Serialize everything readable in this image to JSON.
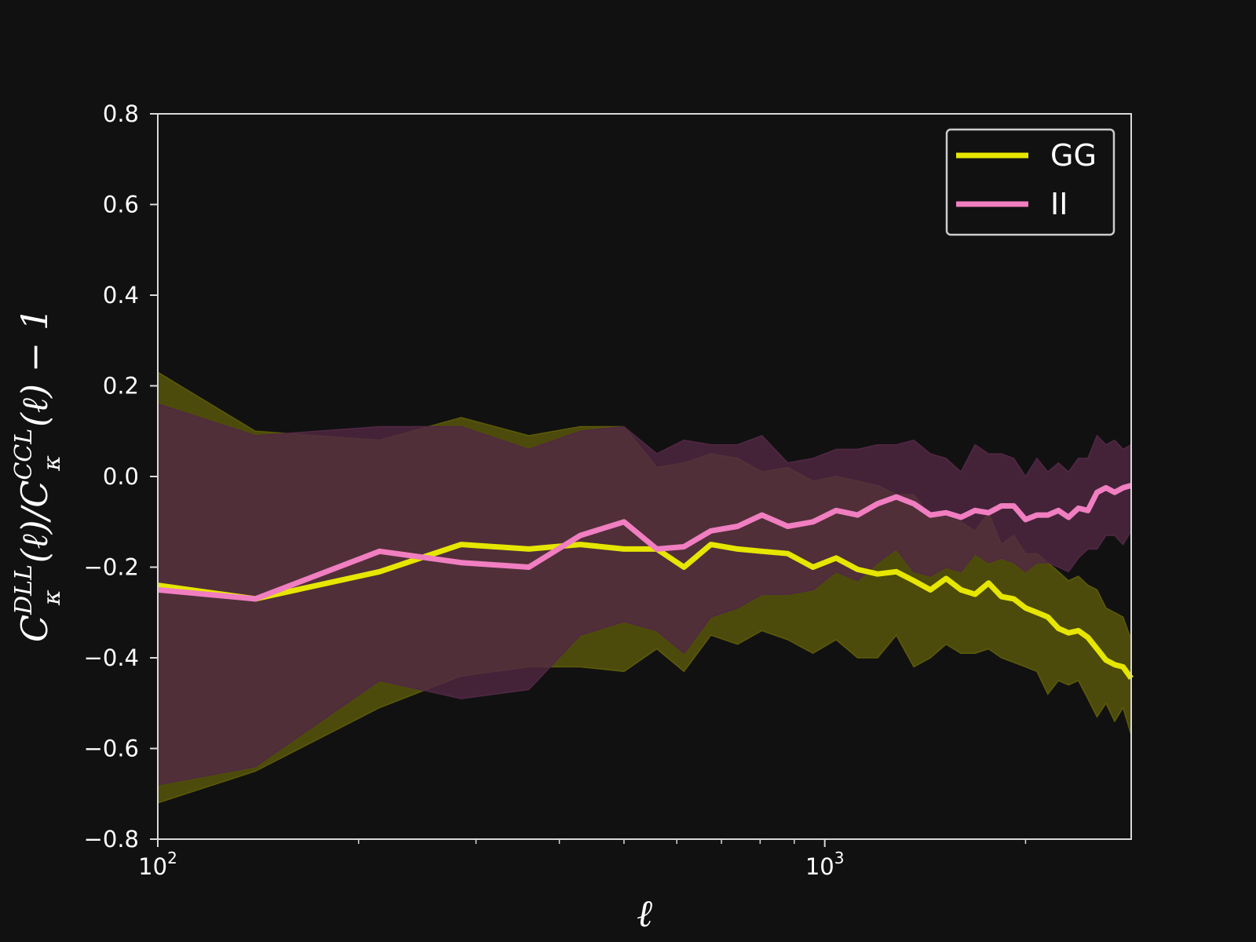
{
  "chart_data": {
    "type": "line",
    "xlabel": "ℓ",
    "ylabel": {
      "prefix": "C",
      "sup1": "DLL",
      "sub1": "κ",
      "mid": "(ℓ)/C",
      "sup2": "CCL",
      "sub2": "κ",
      "suffix": "(ℓ) − 1"
    },
    "x_scale": "log",
    "xlim": [
      100,
      2880
    ],
    "ylim": [
      -0.8,
      0.8
    ],
    "yticks": [
      -0.8,
      -0.6,
      -0.4,
      -0.2,
      0.0,
      0.2,
      0.4,
      0.6,
      0.8
    ],
    "ytick_labels": [
      "−0.8",
      "−0.6",
      "−0.4",
      "−0.2",
      "0.0",
      "0.2",
      "0.4",
      "0.6",
      "0.8"
    ],
    "xticks": [
      100,
      1000
    ],
    "xtick_labels": [
      {
        "base": "10",
        "exp": "2"
      },
      {
        "base": "10",
        "exp": "3"
      }
    ],
    "minor_xticks": [
      200,
      300,
      400,
      500,
      600,
      700,
      800,
      900,
      2000
    ],
    "legend_position": "upper-right",
    "grid": false,
    "series": [
      {
        "name": "GG",
        "color": "#e6e600",
        "band_color": "#5c5a0a",
        "x": [
          100,
          140,
          215,
          285,
          360,
          430,
          500,
          560,
          615,
          675,
          740,
          805,
          880,
          960,
          1040,
          1120,
          1200,
          1280,
          1360,
          1440,
          1520,
          1600,
          1680,
          1760,
          1840,
          1920,
          2000,
          2080,
          2160,
          2240,
          2320,
          2400,
          2480,
          2560,
          2640,
          2720,
          2800,
          2880
        ],
        "y": [
          -0.24,
          -0.27,
          -0.21,
          -0.15,
          -0.16,
          -0.15,
          -0.16,
          -0.16,
          -0.2,
          -0.15,
          -0.16,
          -0.165,
          -0.17,
          -0.2,
          -0.18,
          -0.205,
          -0.215,
          -0.21,
          -0.23,
          -0.25,
          -0.225,
          -0.25,
          -0.26,
          -0.235,
          -0.265,
          -0.27,
          -0.29,
          -0.3,
          -0.31,
          -0.335,
          -0.345,
          -0.34,
          -0.355,
          -0.38,
          -0.405,
          -0.415,
          -0.42,
          -0.445
        ],
        "upper": [
          0.23,
          0.1,
          0.08,
          0.13,
          0.09,
          0.11,
          0.11,
          0.02,
          0.03,
          0.05,
          0.04,
          0.01,
          0.02,
          -0.01,
          0.0,
          -0.01,
          -0.02,
          -0.04,
          -0.04,
          -0.09,
          -0.09,
          -0.1,
          -0.12,
          -0.08,
          -0.15,
          -0.13,
          -0.17,
          -0.17,
          -0.19,
          -0.21,
          -0.23,
          -0.22,
          -0.24,
          -0.25,
          -0.29,
          -0.3,
          -0.31,
          -0.36
        ],
        "lower": [
          -0.72,
          -0.65,
          -0.51,
          -0.44,
          -0.42,
          -0.42,
          -0.43,
          -0.38,
          -0.43,
          -0.35,
          -0.37,
          -0.34,
          -0.36,
          -0.39,
          -0.36,
          -0.4,
          -0.4,
          -0.35,
          -0.42,
          -0.4,
          -0.37,
          -0.39,
          -0.39,
          -0.38,
          -0.4,
          -0.41,
          -0.42,
          -0.43,
          -0.48,
          -0.45,
          -0.46,
          -0.45,
          -0.49,
          -0.53,
          -0.5,
          -0.54,
          -0.51,
          -0.57
        ]
      },
      {
        "name": "II",
        "color": "#f07ec0",
        "band_color": "#512844",
        "x": [
          100,
          140,
          215,
          285,
          360,
          430,
          500,
          560,
          615,
          675,
          740,
          805,
          880,
          960,
          1040,
          1120,
          1200,
          1280,
          1360,
          1440,
          1520,
          1600,
          1680,
          1760,
          1840,
          1920,
          2000,
          2080,
          2160,
          2240,
          2320,
          2400,
          2480,
          2560,
          2640,
          2720,
          2800,
          2880
        ],
        "y": [
          -0.25,
          -0.27,
          -0.165,
          -0.19,
          -0.2,
          -0.13,
          -0.1,
          -0.16,
          -0.155,
          -0.12,
          -0.11,
          -0.085,
          -0.11,
          -0.1,
          -0.075,
          -0.085,
          -0.06,
          -0.045,
          -0.06,
          -0.085,
          -0.08,
          -0.09,
          -0.075,
          -0.08,
          -0.065,
          -0.065,
          -0.095,
          -0.085,
          -0.085,
          -0.075,
          -0.09,
          -0.07,
          -0.075,
          -0.035,
          -0.025,
          -0.035,
          -0.025,
          -0.02
        ],
        "upper": [
          0.16,
          0.09,
          0.11,
          0.11,
          0.06,
          0.1,
          0.11,
          0.05,
          0.08,
          0.07,
          0.07,
          0.09,
          0.03,
          0.04,
          0.06,
          0.06,
          0.07,
          0.07,
          0.08,
          0.05,
          0.04,
          0.01,
          0.07,
          0.05,
          0.05,
          0.04,
          0.0,
          0.04,
          0.01,
          0.03,
          0.01,
          0.04,
          0.04,
          0.09,
          0.07,
          0.08,
          0.06,
          0.07
        ],
        "lower": [
          -0.68,
          -0.64,
          -0.45,
          -0.49,
          -0.47,
          -0.35,
          -0.32,
          -0.34,
          -0.39,
          -0.31,
          -0.29,
          -0.26,
          -0.26,
          -0.25,
          -0.21,
          -0.23,
          -0.19,
          -0.16,
          -0.21,
          -0.22,
          -0.2,
          -0.21,
          -0.17,
          -0.19,
          -0.18,
          -0.19,
          -0.21,
          -0.19,
          -0.19,
          -0.2,
          -0.21,
          -0.18,
          -0.16,
          -0.16,
          -0.13,
          -0.13,
          -0.15,
          -0.12
        ]
      }
    ]
  }
}
